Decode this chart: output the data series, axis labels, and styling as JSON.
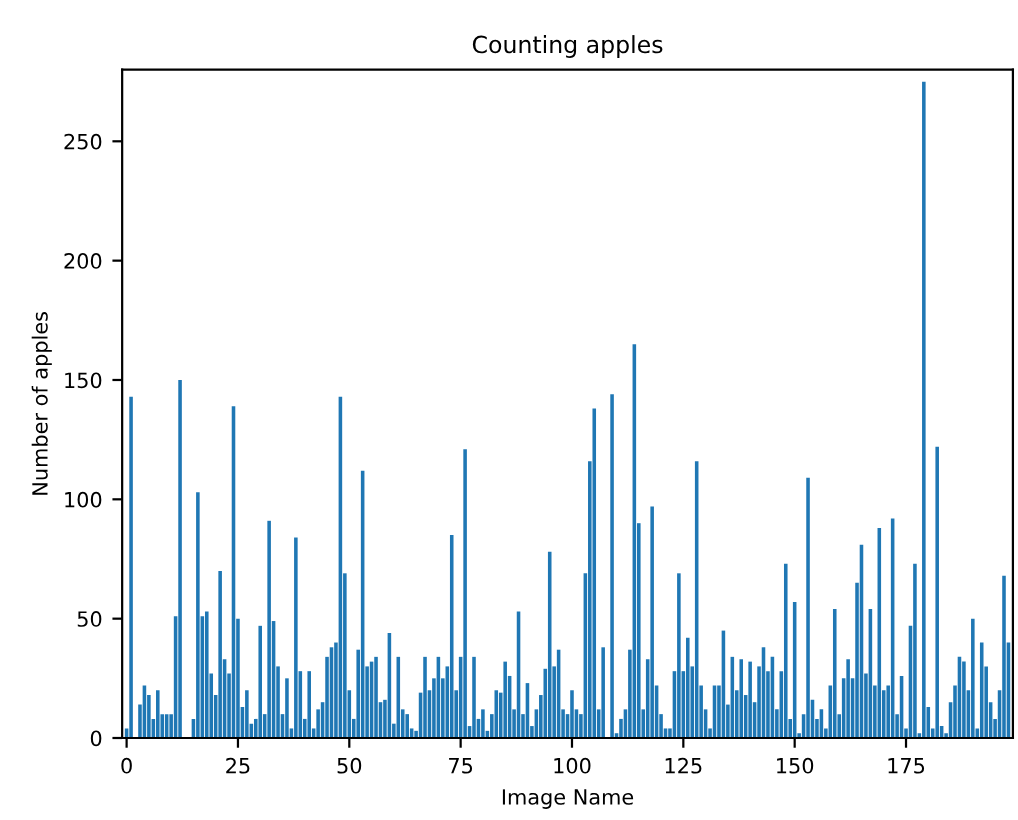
{
  "chart_data": {
    "type": "bar",
    "title": "Counting apples",
    "xlabel": "Image Name",
    "ylabel": "Number of apples",
    "color": "#1f77b4",
    "x": [
      0,
      1,
      2,
      3,
      4,
      5,
      6,
      7,
      8,
      9,
      10,
      11,
      12,
      13,
      14,
      15,
      16,
      17,
      18,
      19,
      20,
      21,
      22,
      23,
      24,
      25,
      26,
      27,
      28,
      29,
      30,
      31,
      32,
      33,
      34,
      35,
      36,
      37,
      38,
      39,
      40,
      41,
      42,
      43,
      44,
      45,
      46,
      47,
      48,
      49,
      50,
      51,
      52,
      53,
      54,
      55,
      56,
      57,
      58,
      59,
      60,
      61,
      62,
      63,
      64,
      65,
      66,
      67,
      68,
      69,
      70,
      71,
      72,
      73,
      74,
      75,
      76,
      77,
      78,
      79,
      80,
      81,
      82,
      83,
      84,
      85,
      86,
      87,
      88,
      89,
      90,
      91,
      92,
      93,
      94,
      95,
      96,
      97,
      98,
      99,
      100,
      101,
      102,
      103,
      104,
      105,
      106,
      107,
      108,
      109,
      110,
      111,
      112,
      113,
      114,
      115,
      116,
      117,
      118,
      119,
      120,
      121,
      122,
      123,
      124,
      125,
      126,
      127,
      128,
      129,
      130,
      131,
      132,
      133,
      134,
      135,
      136,
      137,
      138,
      139,
      140,
      141,
      142,
      143,
      144,
      145,
      146,
      147,
      148,
      149,
      150,
      151,
      152,
      153,
      154,
      155,
      156,
      157,
      158,
      159,
      160,
      161,
      162,
      163,
      164,
      165,
      166,
      167,
      168,
      169,
      170,
      171,
      172,
      173,
      174,
      175,
      176,
      177,
      178,
      179,
      180,
      181,
      182,
      183,
      184,
      185,
      186,
      187,
      188,
      189,
      190,
      191,
      192,
      193,
      194,
      195,
      196,
      197,
      198
    ],
    "values": [
      4,
      143,
      null,
      14,
      22,
      18,
      8,
      20,
      10,
      10,
      10,
      51,
      150,
      null,
      0,
      8,
      103,
      51,
      53,
      27,
      18,
      70,
      33,
      27,
      139,
      50,
      13,
      20,
      6,
      8,
      47,
      10,
      91,
      49,
      30,
      10,
      25,
      4,
      84,
      28,
      8,
      28,
      4,
      12,
      15,
      34,
      38,
      40,
      143,
      69,
      20,
      8,
      37,
      112,
      30,
      32,
      34,
      15,
      16,
      44,
      6,
      34,
      12,
      10,
      4,
      3,
      19,
      34,
      20,
      25,
      34,
      25,
      30,
      85,
      20,
      34,
      121,
      5,
      34,
      8,
      12,
      3,
      10,
      20,
      19,
      32,
      26,
      12,
      53,
      10,
      23,
      5,
      12,
      18,
      29,
      78,
      30,
      37,
      12,
      10,
      20,
      12,
      10,
      69,
      116,
      138,
      12,
      38,
      0,
      144,
      2,
      8,
      12,
      37,
      165,
      90,
      12,
      33,
      97,
      22,
      10,
      4,
      4,
      28,
      69,
      28,
      42,
      30,
      116,
      22,
      12,
      4,
      22,
      22,
      45,
      14,
      34,
      20,
      33,
      18,
      32,
      15,
      30,
      38,
      28,
      34,
      12,
      28,
      73,
      8,
      57,
      2,
      10,
      109,
      16,
      8,
      12,
      4,
      22,
      54,
      10,
      25,
      33,
      25,
      65,
      81,
      27,
      54,
      22,
      88,
      20,
      22,
      92,
      10,
      26,
      4,
      47,
      73,
      2,
      275,
      13,
      4,
      122,
      5,
      2,
      15,
      22,
      34,
      32,
      20,
      50,
      4,
      40,
      30,
      15,
      8,
      20,
      68,
      40
    ],
    "xlim": [
      -1,
      199
    ],
    "ylim": [
      0,
      280
    ],
    "xticks": [
      0,
      25,
      50,
      75,
      100,
      125,
      150,
      175
    ],
    "yticks": [
      0,
      50,
      100,
      150,
      200,
      250
    ],
    "grid": false
  }
}
